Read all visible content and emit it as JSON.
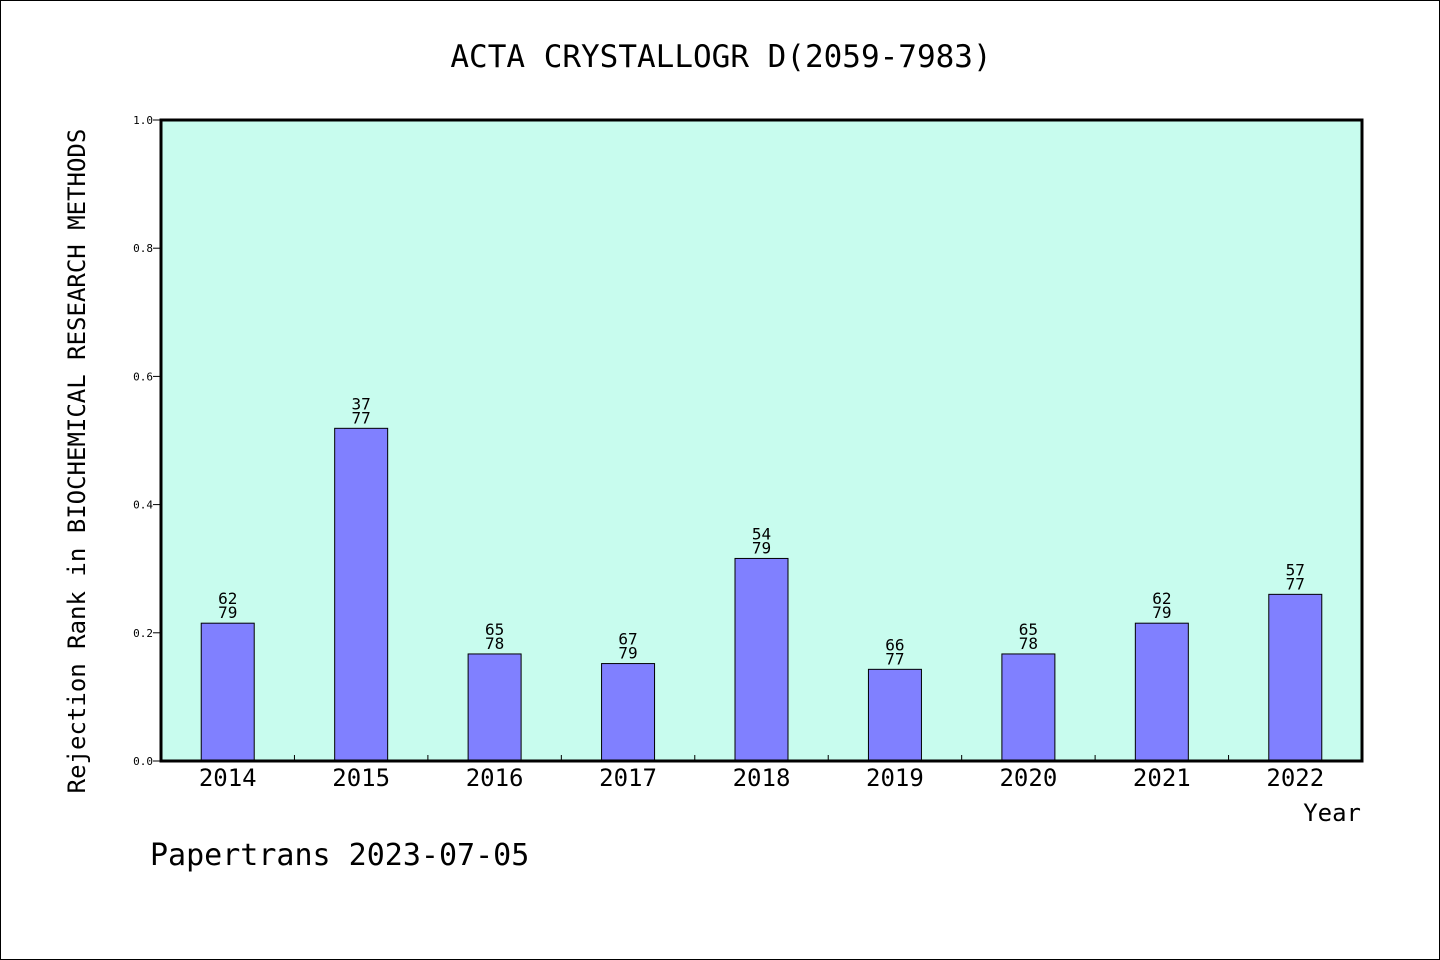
{
  "chart_data": {
    "type": "bar",
    "title": "ACTA CRYSTALLOGR D(2059-7983)",
    "xlabel": "Year",
    "ylabel": "Rejection Rank in BIOCHEMICAL RESEARCH METHODS",
    "categories": [
      "2014",
      "2015",
      "2016",
      "2017",
      "2018",
      "2019",
      "2020",
      "2021",
      "2022"
    ],
    "values": [
      0.215,
      0.519,
      0.167,
      0.152,
      0.316,
      0.143,
      0.167,
      0.215,
      0.26
    ],
    "ranks": [
      "62",
      "37",
      "65",
      "67",
      "54",
      "66",
      "65",
      "62",
      "57"
    ],
    "totals": [
      "79",
      "77",
      "78",
      "79",
      "79",
      "77",
      "78",
      "79",
      "77"
    ],
    "ylim": [
      0,
      1.0
    ],
    "yticks": [
      "0.0",
      "0.2",
      "0.4",
      "0.6",
      "0.8",
      "1.0"
    ],
    "grid": false,
    "colors": {
      "bar": "#8080ff",
      "plot_bg": "#c8fcee"
    }
  },
  "footer": "Papertrans 2023-07-05"
}
